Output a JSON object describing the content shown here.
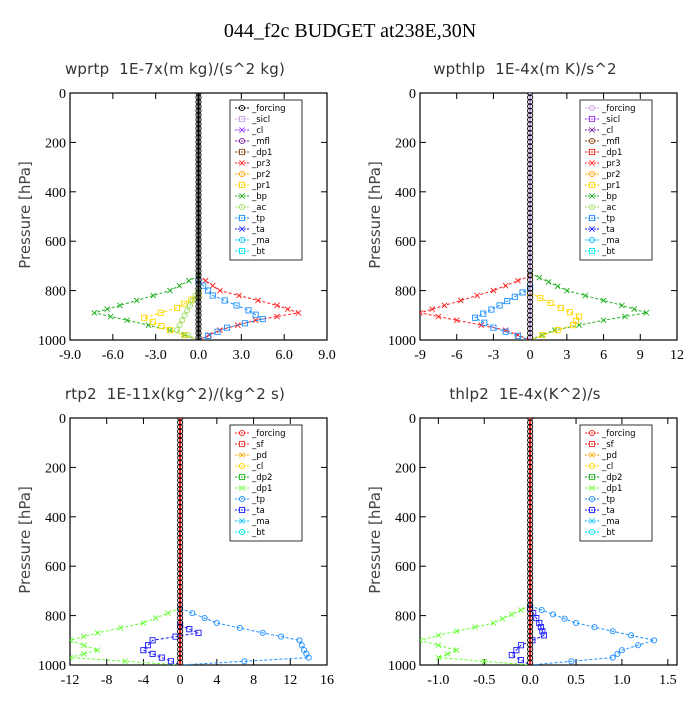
{
  "page": {
    "title": "044_f2c  BUDGET at238E,30N"
  },
  "chart_data": [
    {
      "id": "wprtp",
      "type": "line",
      "title": "wprtp  1E-7x(m kg)/(s^2 kg)",
      "ylabel": "Pressure [hPa]",
      "xlim": [
        -9,
        9
      ],
      "ylim": [
        1000,
        0
      ],
      "xticks": [
        -9,
        -6,
        -3,
        0,
        3,
        6,
        9
      ],
      "xtick_labels": [
        "-9.0",
        "-6.0",
        "-3.0",
        "0.0",
        "3.0",
        "6.0",
        "9.0"
      ],
      "yticks": [
        0,
        200,
        400,
        600,
        800,
        1000
      ],
      "ytick_labels": [
        "0",
        "200",
        "400",
        "600",
        "800",
        "1000"
      ],
      "legend_position": "top-right",
      "legend": [
        "_forcing",
        "_sicl",
        "_cl",
        "_mfl",
        "_dp1",
        "_pr3",
        "_pr2",
        "_pr1",
        "_bp",
        "_ac",
        "_tp",
        "_ta",
        "_ma",
        "_bt"
      ],
      "colors": [
        "#000000",
        "#c8a0e6",
        "#9b30ff",
        "#7b1fa2",
        "#8b4513",
        "#ff2020",
        "#ffa500",
        "#ffd700",
        "#20b020",
        "#a0e060",
        "#1e90ff",
        "#1a1aff",
        "#00bfff",
        "#00e5ee"
      ],
      "series": [
        {
          "name": "_pr3",
          "p": [
            740,
            800,
            860,
            890,
            920,
            960,
            1000
          ],
          "x": [
            0,
            1.5,
            5.5,
            7.0,
            4.0,
            1.5,
            0
          ]
        },
        {
          "name": "_bp",
          "p": [
            740,
            800,
            860,
            890,
            920,
            960,
            1000
          ],
          "x": [
            0,
            -2.0,
            -5.5,
            -7.3,
            -5.0,
            -2.0,
            0
          ]
        },
        {
          "name": "_pr1",
          "p": [
            820,
            870,
            910,
            960,
            1000
          ],
          "x": [
            0,
            -1.5,
            -3.8,
            -2.0,
            0
          ]
        },
        {
          "name": "_tp",
          "p": [
            760,
            820,
            880,
            915,
            950,
            1000
          ],
          "x": [
            0,
            1.0,
            3.5,
            4.5,
            2.0,
            0
          ]
        },
        {
          "name": "_ac",
          "p": [
            800,
            880,
            960,
            1000
          ],
          "x": [
            0,
            -0.8,
            -1.5,
            0
          ]
        },
        {
          "name": "_forcing",
          "p": [
            0,
            1000
          ],
          "x": [
            0,
            0
          ]
        }
      ]
    },
    {
      "id": "wpthlp",
      "type": "line",
      "title": "wpthlp  1E-4x(m K)/s^2",
      "ylabel": "Pressure [hPa]",
      "xlim": [
        -9,
        12
      ],
      "ylim": [
        1000,
        0
      ],
      "xticks": [
        -9,
        -6,
        -3,
        0,
        3,
        6,
        9,
        12
      ],
      "xtick_labels": [
        "-9",
        "-6",
        "-3",
        "0",
        "3",
        "6",
        "9",
        "12"
      ],
      "yticks": [
        0,
        200,
        400,
        600,
        800,
        1000
      ],
      "ytick_labels": [
        "0",
        "200",
        "400",
        "600",
        "800",
        "1000"
      ],
      "legend_position": "top-right",
      "legend": [
        "_forcing",
        "_sicl",
        "_cl",
        "_mfl",
        "_dp1",
        "_pr3",
        "_pr2",
        "_pr1",
        "_bp",
        "_ac",
        "_tp",
        "_ta",
        "_ma",
        "_bt"
      ],
      "colors": [
        "#c8a0e6",
        "#9b30ff",
        "#7b1fa2",
        "#8b4513",
        "#ff2020",
        "#ff2020",
        "#ffa500",
        "#ffd700",
        "#20b020",
        "#a0e060",
        "#1e90ff",
        "#1a1aff",
        "#00bfff",
        "#00e5ee"
      ],
      "series": [
        {
          "name": "_pr3",
          "p": [
            740,
            800,
            860,
            890,
            920,
            960,
            1000
          ],
          "x": [
            0,
            -3.0,
            -7.0,
            -9.0,
            -6.0,
            -2.0,
            0
          ]
        },
        {
          "name": "_bp",
          "p": [
            730,
            800,
            860,
            890,
            920,
            960,
            1000
          ],
          "x": [
            0,
            3.0,
            7.5,
            9.5,
            6.0,
            2.0,
            0
          ]
        },
        {
          "name": "_pr1",
          "p": [
            810,
            870,
            905,
            940,
            980,
            1000
          ],
          "x": [
            0,
            2.5,
            4.0,
            3.5,
            1.0,
            0
          ]
        },
        {
          "name": "_tp",
          "p": [
            790,
            860,
            910,
            950,
            1000
          ],
          "x": [
            0,
            -2.5,
            -4.5,
            -3.0,
            0
          ]
        },
        {
          "name": "_forcing",
          "p": [
            0,
            1000
          ],
          "x": [
            0,
            0
          ]
        }
      ]
    },
    {
      "id": "rtp2",
      "type": "line",
      "title": "rtp2  1E-11x(kg^2)/(kg^2 s)",
      "ylabel": "Pressure [hPa]",
      "xlim": [
        -12,
        16
      ],
      "ylim": [
        1000,
        0
      ],
      "xticks": [
        -12,
        -8,
        -4,
        0,
        4,
        8,
        12,
        16
      ],
      "xtick_labels": [
        "-12",
        "-8",
        "-4",
        "0",
        "4",
        "8",
        "12",
        "16"
      ],
      "yticks": [
        0,
        200,
        400,
        600,
        800,
        1000
      ],
      "ytick_labels": [
        "0",
        "200",
        "400",
        "600",
        "800",
        "1000"
      ],
      "legend_position": "top-right",
      "legend": [
        "_forcing",
        "_sf",
        "_pd",
        "_cl",
        "_dp2",
        "_dp1",
        "_tp",
        "_ta",
        "_ma",
        "_bt"
      ],
      "colors": [
        "#ff2020",
        "#e03030",
        "#ffa500",
        "#ffd700",
        "#20b020",
        "#66ff33",
        "#1e90ff",
        "#1a1aff",
        "#00bfff",
        "#00e5ee"
      ],
      "series": [
        {
          "name": "_dp1",
          "p": [
            770,
            830,
            870,
            900,
            940,
            970,
            1000
          ],
          "x": [
            0,
            -4.0,
            -9.0,
            -12.0,
            -9.0,
            -12.0,
            0
          ]
        },
        {
          "name": "_tp",
          "p": [
            770,
            830,
            870,
            900,
            940,
            970,
            1000
          ],
          "x": [
            0,
            4.0,
            9.0,
            13.0,
            13.5,
            14.0,
            0
          ]
        },
        {
          "name": "_ta",
          "p": [
            840,
            870,
            900,
            940,
            970,
            1000
          ],
          "x": [
            0,
            2.0,
            -3.0,
            -4.0,
            -2.0,
            0
          ]
        },
        {
          "name": "_forcing",
          "p": [
            0,
            1000
          ],
          "x": [
            0,
            0
          ]
        }
      ]
    },
    {
      "id": "thlp2",
      "type": "line",
      "title": "thlp2  1E-4x(K^2)/s",
      "ylabel": "Pressure [hPa]",
      "xlim": [
        -1.2,
        1.6
      ],
      "ylim": [
        1000,
        0
      ],
      "xticks": [
        -1.0,
        -0.5,
        0.0,
        0.5,
        1.0,
        1.5
      ],
      "xtick_labels": [
        "-1.0",
        "-0.5",
        "0.0",
        "0.5",
        "1.0",
        "1.5"
      ],
      "yticks": [
        0,
        200,
        400,
        600,
        800,
        1000
      ],
      "ytick_labels": [
        "0",
        "200",
        "400",
        "600",
        "800",
        "1000"
      ],
      "legend_position": "top-right",
      "legend": [
        "_forcing",
        "_sf",
        "_pd",
        "_cl",
        "_dp2",
        "_dp1",
        "_tp",
        "_ta",
        "_ma",
        "_bt"
      ],
      "colors": [
        "#ff2020",
        "#e03030",
        "#ffa500",
        "#ffd700",
        "#20b020",
        "#66ff33",
        "#1e90ff",
        "#1a1aff",
        "#00bfff",
        "#00e5ee"
      ],
      "series": [
        {
          "name": "_dp1",
          "p": [
            760,
            830,
            880,
            900,
            940,
            970,
            1000
          ],
          "x": [
            0,
            -0.4,
            -1.0,
            -1.2,
            -0.8,
            -1.0,
            0
          ]
        },
        {
          "name": "_tp",
          "p": [
            760,
            830,
            880,
            900,
            940,
            970,
            1000
          ],
          "x": [
            0,
            0.5,
            1.1,
            1.35,
            1.0,
            0.9,
            0
          ]
        },
        {
          "name": "_ta",
          "p": [
            770,
            830,
            880,
            920,
            960,
            1000
          ],
          "x": [
            0,
            0.1,
            0.15,
            -0.1,
            -0.2,
            0
          ]
        },
        {
          "name": "_forcing",
          "p": [
            0,
            1000
          ],
          "x": [
            0,
            0
          ]
        }
      ]
    }
  ]
}
